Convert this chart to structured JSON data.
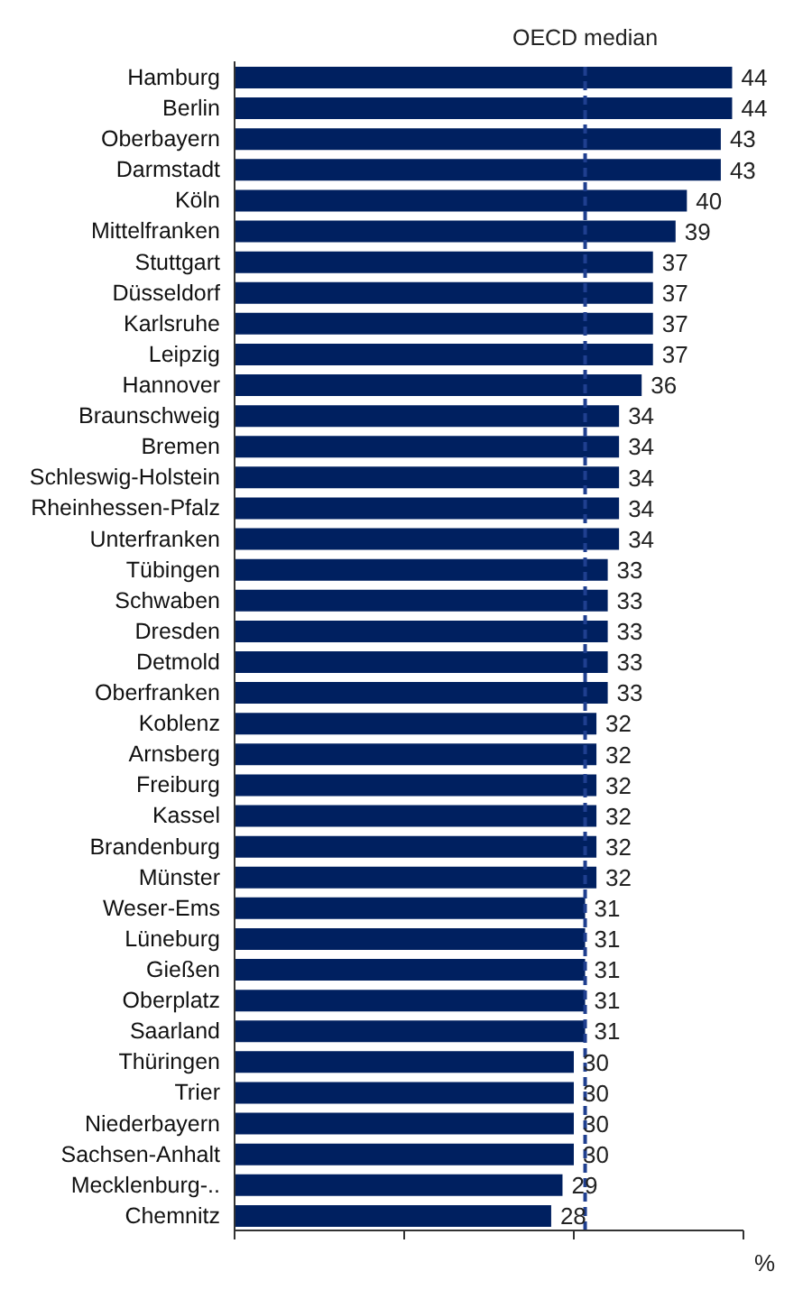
{
  "chart_data": {
    "type": "bar",
    "orientation": "horizontal",
    "xlabel": "%",
    "categories": [
      "Hamburg",
      "Berlin",
      "Oberbayern",
      "Darmstadt",
      "Köln",
      "Mittelfranken",
      "Stuttgart",
      "Düsseldorf",
      "Karlsruhe",
      "Leipzig",
      "Hannover",
      "Braunschweig",
      "Bremen",
      "Schleswig-Holstein",
      "Rheinhessen-Pfalz",
      "Unterfranken",
      "Tübingen",
      "Schwaben",
      "Dresden",
      "Detmold",
      "Oberfranken",
      "Koblenz",
      "Arnsberg",
      "Freiburg",
      "Kassel",
      "Brandenburg",
      "Münster",
      "Weser-Ems",
      "Lüneburg",
      "Gießen",
      "Oberplatz",
      "Saarland",
      "Thüringen",
      "Trier",
      "Niederbayern",
      "Sachsen-Anhalt",
      "Mecklenburg-..",
      "Chemnitz"
    ],
    "values": [
      44,
      44,
      43,
      43,
      40,
      39,
      37,
      37,
      37,
      37,
      36,
      34,
      34,
      34,
      34,
      34,
      33,
      33,
      33,
      33,
      33,
      32,
      32,
      32,
      32,
      32,
      32,
      31,
      31,
      31,
      31,
      31,
      30,
      30,
      30,
      30,
      29,
      28
    ],
    "color": "#002060",
    "data_labels": true,
    "xlim": [
      0,
      45
    ],
    "tick_labels": "y",
    "grid": false,
    "legend": false,
    "ref_lines": [
      {
        "axis": "x",
        "value": 31,
        "label": "OECD median",
        "color": "#1f3f8f",
        "line_style": "dashed"
      }
    ]
  }
}
